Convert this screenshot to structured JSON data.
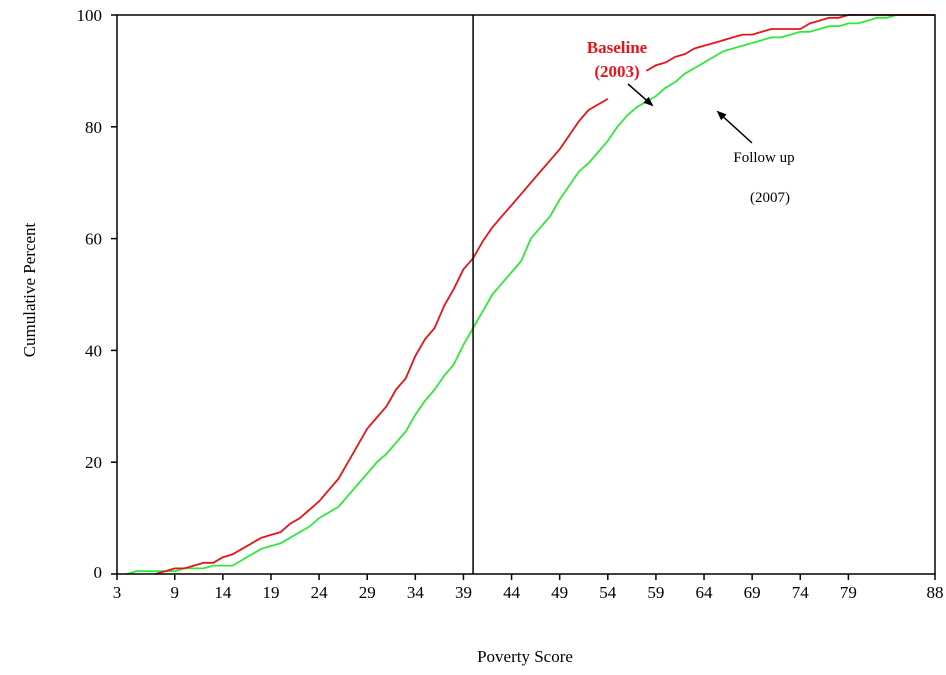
{
  "chart_data": {
    "type": "line",
    "title": "",
    "xlabel": "Poverty Score",
    "ylabel": "Cumulative Percent",
    "xlim": [
      3,
      88
    ],
    "ylim": [
      0,
      100
    ],
    "xticks": [
      3,
      9,
      14,
      19,
      24,
      29,
      34,
      39,
      44,
      49,
      54,
      59,
      64,
      69,
      74,
      79,
      88
    ],
    "yticks": [
      0,
      20,
      40,
      60,
      80,
      100
    ],
    "grid": false,
    "reference_line_x": 40,
    "series": [
      {
        "name": "Baseline (2003)",
        "color": "#e8141c",
        "x": [
          7,
          8,
          9,
          10,
          11,
          12,
          13,
          14,
          15,
          16,
          17,
          18,
          19,
          20,
          21,
          22,
          23,
          24,
          25,
          26,
          27,
          28,
          29,
          30,
          31,
          32,
          33,
          34,
          35,
          36,
          37,
          38,
          39,
          40,
          41,
          42,
          43,
          44,
          45,
          46,
          47,
          48,
          49,
          50,
          51,
          52,
          53,
          54,
          58,
          59,
          60,
          61,
          62,
          63,
          64,
          65,
          66,
          67,
          68,
          69,
          70,
          71,
          72,
          73,
          74,
          75,
          76,
          77,
          78,
          79,
          80,
          81,
          82,
          83,
          84,
          85,
          86,
          87,
          88
        ],
        "values": [
          0,
          0.5,
          1,
          1,
          1.5,
          2,
          2,
          3,
          3.5,
          4.5,
          5.5,
          6.5,
          7,
          7.5,
          9,
          10,
          11.5,
          13,
          15,
          17,
          20,
          23,
          26,
          28,
          30,
          33,
          35,
          39,
          42,
          44,
          48,
          51,
          54.5,
          56.5,
          59.5,
          62,
          64,
          66,
          68,
          70,
          72,
          74,
          76,
          78.5,
          81,
          83,
          84,
          85,
          90,
          91,
          91.5,
          92.5,
          93,
          94,
          94.5,
          95,
          95.5,
          96,
          96.5,
          96.5,
          97,
          97.5,
          97.5,
          97.5,
          97.5,
          98.5,
          99,
          99.5,
          99.5,
          100,
          100,
          100,
          100,
          100,
          100,
          100,
          100,
          100,
          100
        ]
      },
      {
        "name": "Follow up (2007)",
        "color": "#32e83c",
        "x": [
          4,
          5,
          6,
          7,
          8,
          9,
          10,
          11,
          12,
          13,
          14,
          15,
          16,
          17,
          18,
          19,
          20,
          21,
          22,
          23,
          24,
          25,
          26,
          27,
          28,
          29,
          30,
          31,
          32,
          33,
          34,
          35,
          36,
          37,
          38,
          39,
          40,
          41,
          42,
          43,
          44,
          45,
          46,
          47,
          48,
          49,
          50,
          51,
          52,
          53,
          54,
          55,
          56,
          57,
          58,
          59,
          60,
          61,
          62,
          63,
          64,
          65,
          66,
          67,
          68,
          69,
          70,
          71,
          72,
          73,
          74,
          75,
          76,
          77,
          78,
          79,
          80,
          81,
          82,
          83,
          84,
          85,
          86,
          87,
          88
        ],
        "values": [
          0,
          0.5,
          0.5,
          0.5,
          0.5,
          0.5,
          1,
          1,
          1,
          1.5,
          1.5,
          1.5,
          2.5,
          3.5,
          4.5,
          5,
          5.5,
          6.5,
          7.5,
          8.5,
          10,
          11,
          12,
          14,
          16,
          18,
          20,
          21.5,
          23.5,
          25.5,
          28.5,
          31,
          33,
          35.5,
          37.5,
          41,
          44,
          47,
          50,
          52,
          54,
          56,
          60,
          62,
          64,
          67,
          69.5,
          72,
          73.5,
          75.5,
          77.5,
          80,
          82,
          83.5,
          84.5,
          85.5,
          87,
          88,
          89.5,
          90.5,
          91.5,
          92.5,
          93.5,
          94,
          94.5,
          95,
          95.5,
          96,
          96,
          96.5,
          97,
          97,
          97.5,
          98,
          98,
          98.5,
          98.5,
          99,
          99.5,
          99.5,
          100,
          100,
          100,
          100,
          100
        ]
      }
    ],
    "annotations": {
      "baseline_line1": "Baseline",
      "baseline_line2": "(2003)",
      "followup_line1": "Follow up",
      "followup_line2": "(2007)"
    }
  }
}
